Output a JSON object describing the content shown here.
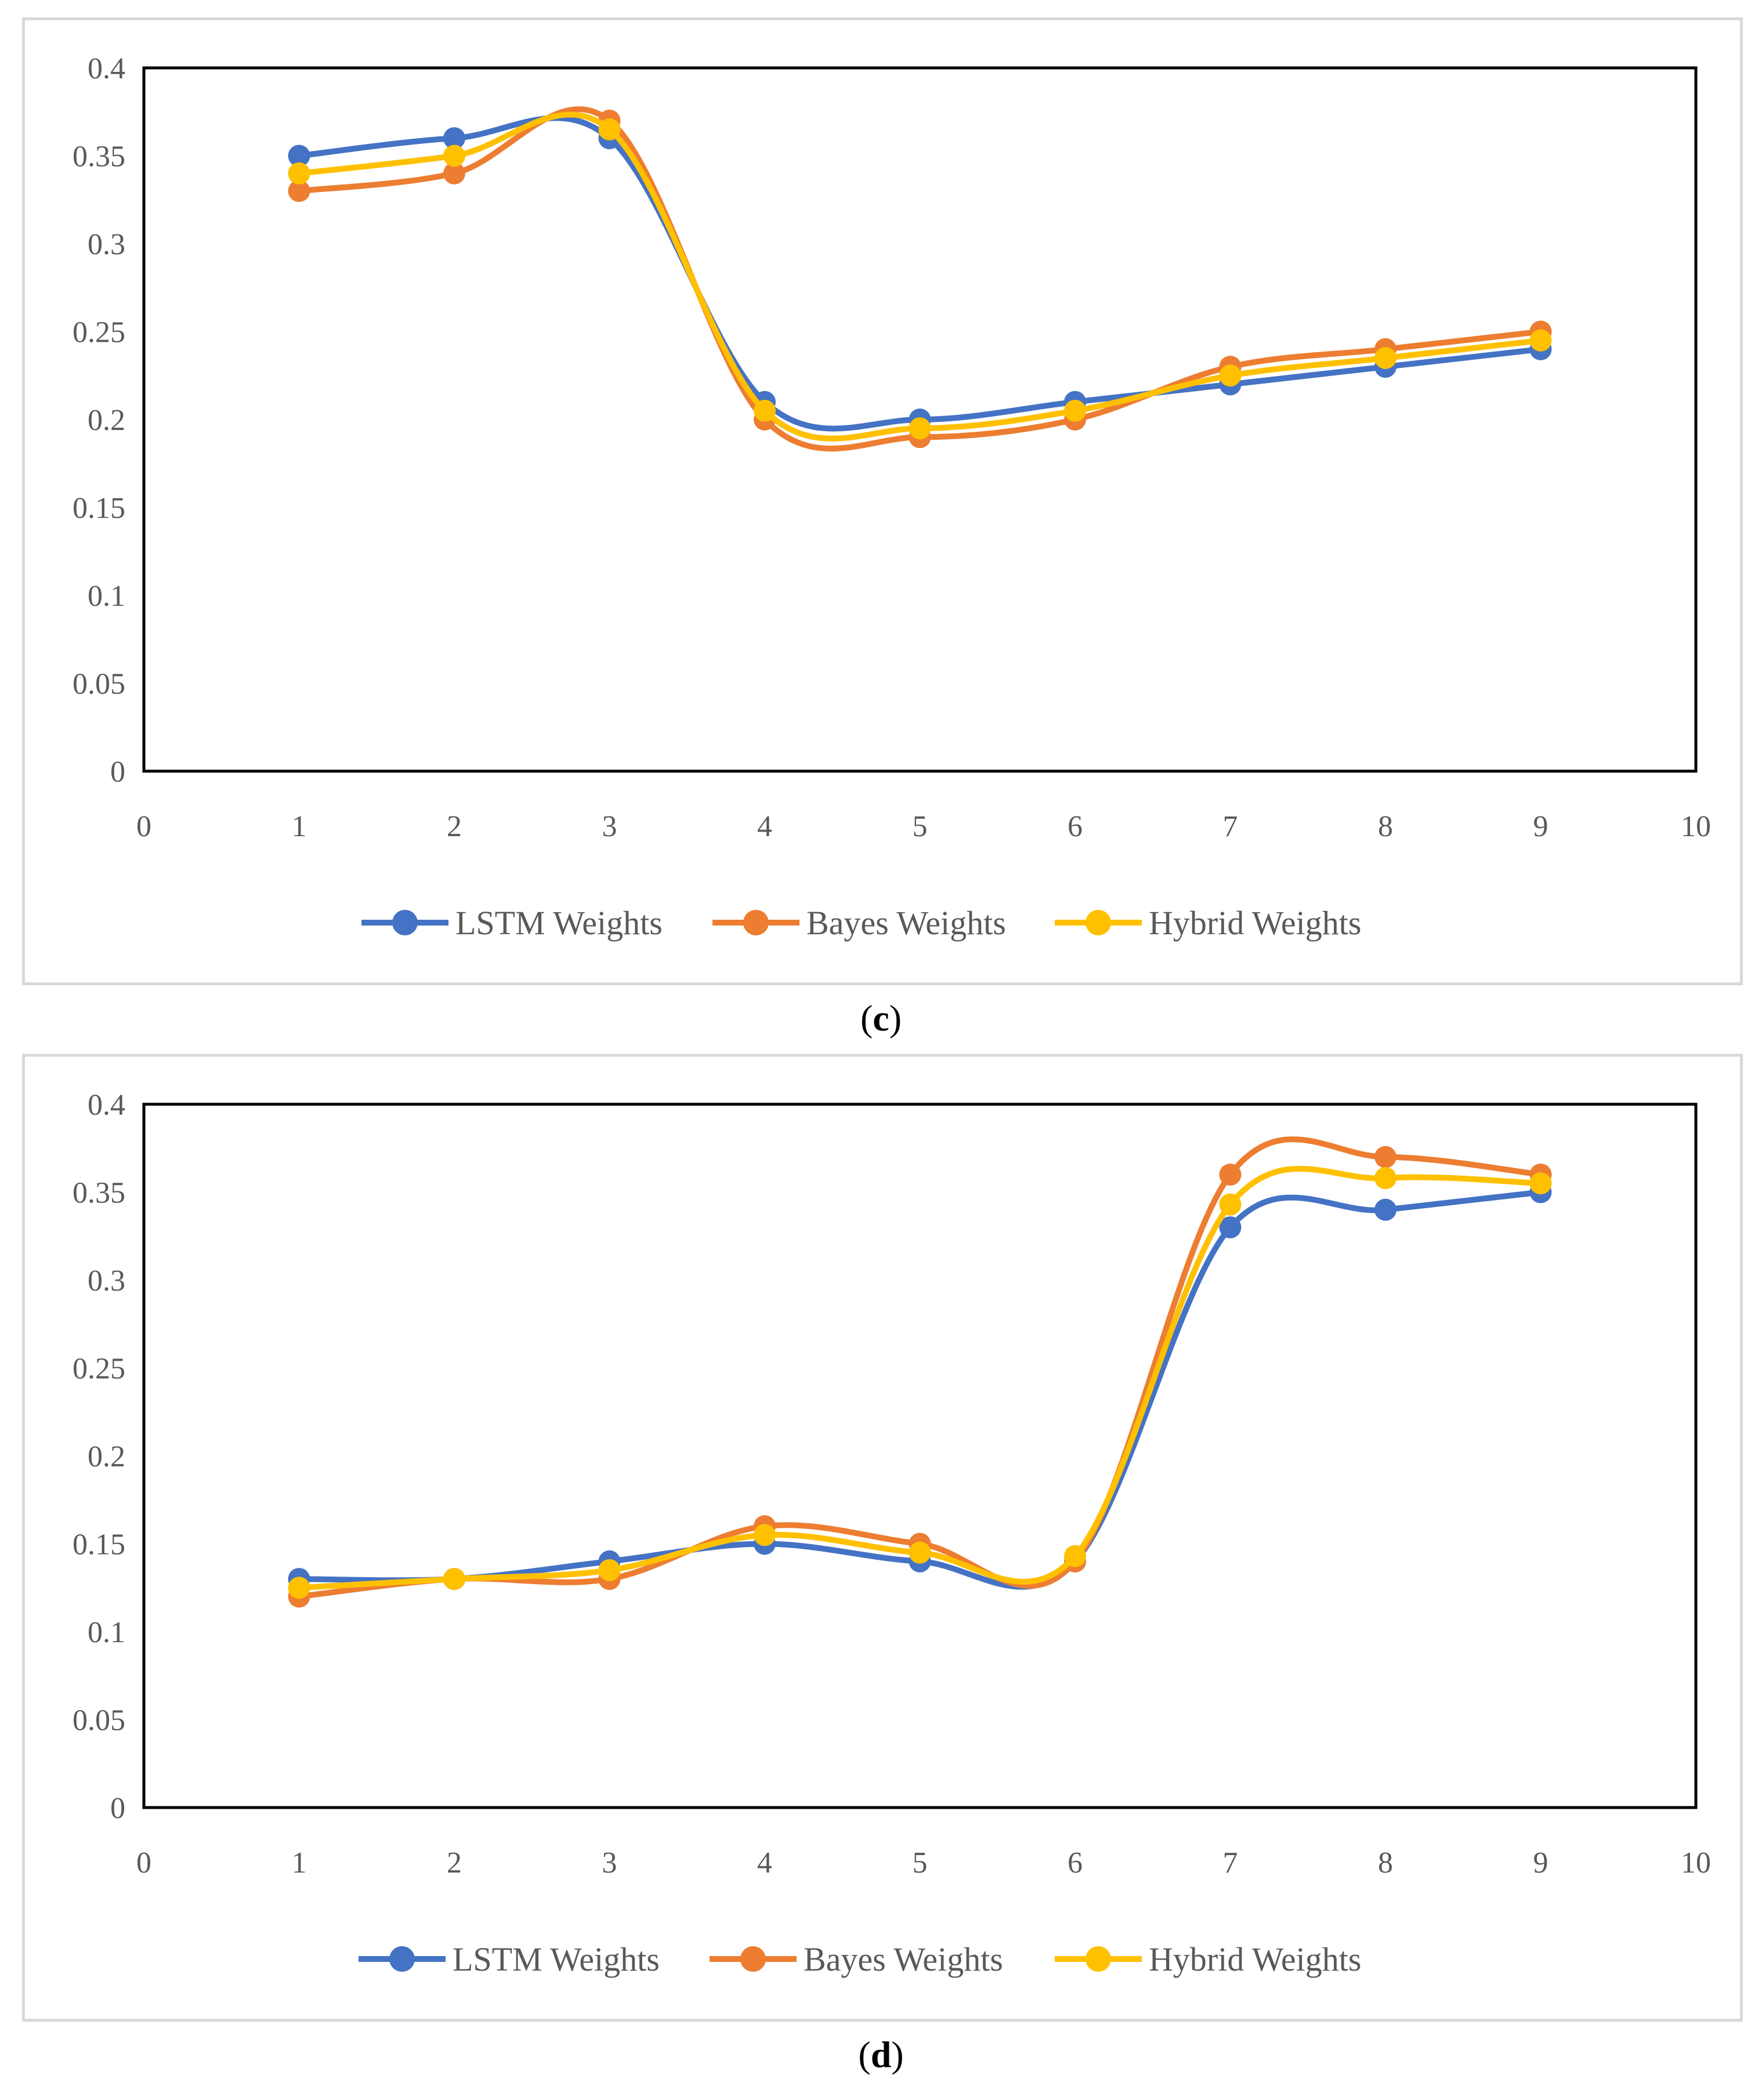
{
  "chart_data": [
    {
      "type": "line",
      "panel_label": "c",
      "x": [
        1,
        2,
        3,
        4,
        5,
        6,
        7,
        8,
        9
      ],
      "xlim": [
        0,
        10
      ],
      "xticks": [
        "0",
        "1",
        "2",
        "3",
        "4",
        "5",
        "6",
        "7",
        "8",
        "9",
        "10"
      ],
      "ylim": [
        0,
        0.4
      ],
      "yticks": [
        "0",
        "0.05",
        "0.1",
        "0.15",
        "0.2",
        "0.25",
        "0.3",
        "0.35",
        "0.4"
      ],
      "legend_position": "bottom",
      "series": [
        {
          "name": "LSTM Weights",
          "color": "#4472C4",
          "values": [
            0.35,
            0.36,
            0.36,
            0.21,
            0.2,
            0.21,
            0.22,
            0.23,
            0.24
          ]
        },
        {
          "name": "Bayes Weights",
          "color": "#ED7D31",
          "values": [
            0.33,
            0.34,
            0.37,
            0.2,
            0.19,
            0.2,
            0.23,
            0.24,
            0.25
          ]
        },
        {
          "name": "Hybrid Weights",
          "color": "#FFC000",
          "values": [
            0.34,
            0.35,
            0.365,
            0.205,
            0.195,
            0.205,
            0.225,
            0.235,
            0.245
          ]
        }
      ]
    },
    {
      "type": "line",
      "panel_label": "d",
      "x": [
        1,
        2,
        3,
        4,
        5,
        6,
        7,
        8,
        9
      ],
      "xlim": [
        0,
        10
      ],
      "xticks": [
        "0",
        "1",
        "2",
        "3",
        "4",
        "5",
        "6",
        "7",
        "8",
        "9",
        "10"
      ],
      "ylim": [
        0,
        0.4
      ],
      "yticks": [
        "0",
        "0.05",
        "0.1",
        "0.15",
        "0.2",
        "0.25",
        "0.3",
        "0.35",
        "0.4"
      ],
      "legend_position": "bottom",
      "series": [
        {
          "name": "LSTM Weights",
          "color": "#4472C4",
          "values": [
            0.13,
            0.13,
            0.14,
            0.15,
            0.14,
            0.14,
            0.33,
            0.34,
            0.35
          ]
        },
        {
          "name": "Bayes Weights",
          "color": "#ED7D31",
          "values": [
            0.12,
            0.13,
            0.13,
            0.16,
            0.15,
            0.14,
            0.36,
            0.37,
            0.36
          ]
        },
        {
          "name": "Hybrid Weights",
          "color": "#FFC000",
          "values": [
            0.125,
            0.13,
            0.135,
            0.155,
            0.145,
            0.143,
            0.343,
            0.358,
            0.355
          ]
        }
      ]
    }
  ]
}
